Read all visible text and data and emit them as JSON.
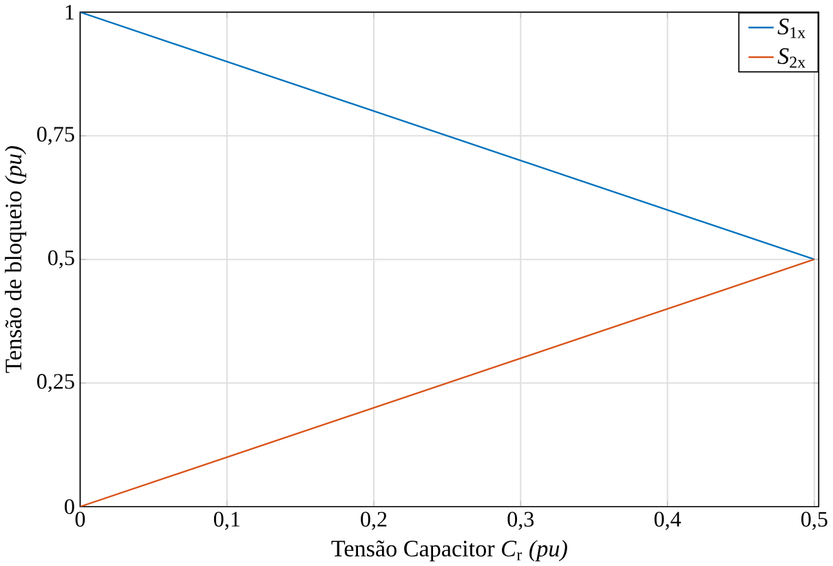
{
  "chart_data": {
    "type": "line",
    "xlabel": "Tensão Capacitor *C*$_{r}$ *(pu)*",
    "ylabel": "Tensão de bloqueio *(pu)*",
    "x": [
      0,
      0.5
    ],
    "series": [
      {
        "name": "*S*$_{1x}$",
        "color": "#0072bd",
        "values": [
          1,
          0.5
        ]
      },
      {
        "name": "*S*$_{2x}$",
        "color": "#d95319",
        "values": [
          0,
          0.5
        ]
      }
    ],
    "xlim": [
      0,
      0.503
    ],
    "ylim": [
      0,
      1
    ],
    "xticks": [
      0,
      {
        "value": 0.1,
        "label": "0,1"
      },
      {
        "value": 0.2,
        "label": "0,2"
      },
      {
        "value": 0.3,
        "label": "0,3"
      },
      {
        "value": 0.4,
        "label": "0,4"
      },
      {
        "value": 0.5,
        "label": "0,5"
      }
    ],
    "yticks": [
      0,
      {
        "value": 0.25,
        "label": "0,25"
      },
      {
        "value": 0.5,
        "label": "0,5"
      },
      {
        "value": 0.75,
        "label": "0,75"
      },
      1
    ],
    "grid": true,
    "legend": "top right",
    "marker": "none",
    "line_style": "solid"
  }
}
